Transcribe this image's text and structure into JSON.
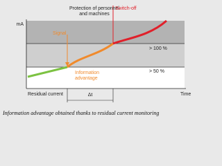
{
  "header": {
    "protection": [
      "Protection of personnel",
      "and machines"
    ],
    "switch_off": "Switch-off"
  },
  "axes": {
    "y_label": "mA",
    "x_label": "Time",
    "origin_label": "Residual current"
  },
  "labels": {
    "signal": "Signal",
    "info_advantage": [
      "Information",
      "advantage"
    ],
    "delta_t": "Δt",
    "level_100": "> 100 %",
    "level_50": "> 50 %"
  },
  "caption": "Information advantage obtained thanks to residual current monitoring"
}
